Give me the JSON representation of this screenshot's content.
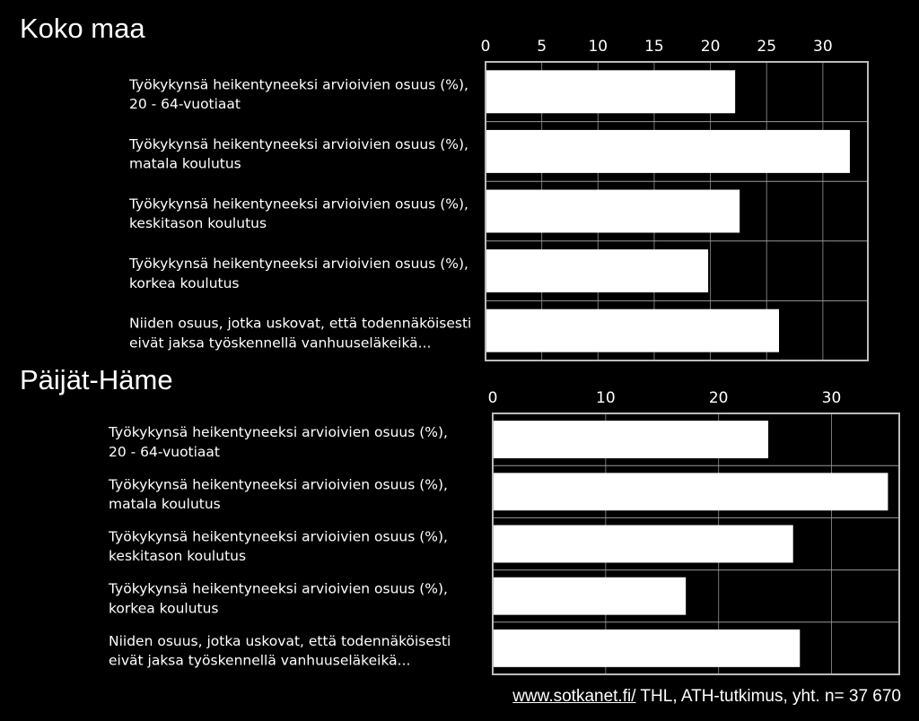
{
  "source": {
    "link_text": "www.sotkanet.fi/",
    "text": " THL, ATH-tutkimus, yht. n= 37 670"
  },
  "chart_data": [
    {
      "type": "bar",
      "orientation": "horizontal",
      "title": "Koko maa",
      "xticks": [
        0,
        5,
        10,
        15,
        20,
        25,
        30
      ],
      "xlim": [
        0,
        34
      ],
      "axis_position": "top",
      "grid": true,
      "categories": [
        [
          "Työkykynsä heikentyneeksi arvioivien osuus (%),",
          "20 - 64-vuotiaat"
        ],
        [
          "Työkykynsä heikentyneeksi arvioivien osuus (%),",
          "matala koulutus"
        ],
        [
          "Työkykynsä heikentyneeksi arvioivien osuus (%),",
          "keskitason koulutus"
        ],
        [
          "Työkykynsä heikentyneeksi arvioivien osuus (%),",
          "korkea koulutus"
        ],
        [
          "Niiden osuus, jotka uskovat, että todennäköisesti",
          "eivät jaksa työskennellä vanhuuseläkeikä..."
        ]
      ],
      "values": [
        22.2,
        32.4,
        22.6,
        19.8,
        26.1
      ]
    },
    {
      "type": "bar",
      "orientation": "horizontal",
      "title": "Päijät-Häme",
      "xticks": [
        0,
        10,
        20,
        30
      ],
      "xlim": [
        0,
        36
      ],
      "axis_position": "top",
      "grid": true,
      "categories": [
        [
          "Työkykynsä heikentyneeksi arvioivien osuus (%),",
          "20 - 64-vuotiaat"
        ],
        [
          "Työkykynsä heikentyneeksi arvioivien osuus (%),",
          "matala koulutus"
        ],
        [
          "Työkykynsä heikentyneeksi arvioivien osuus (%),",
          "keskitason koulutus"
        ],
        [
          "Työkykynsä heikentyneeksi arvioivien osuus (%),",
          "korkea koulutus"
        ],
        [
          "Niiden osuus, jotka uskovat, että todennäköisesti",
          "eivät jaksa työskennellä vanhuuseläkeikä..."
        ]
      ],
      "values": [
        24.4,
        35.0,
        26.6,
        17.1,
        27.2
      ]
    }
  ]
}
